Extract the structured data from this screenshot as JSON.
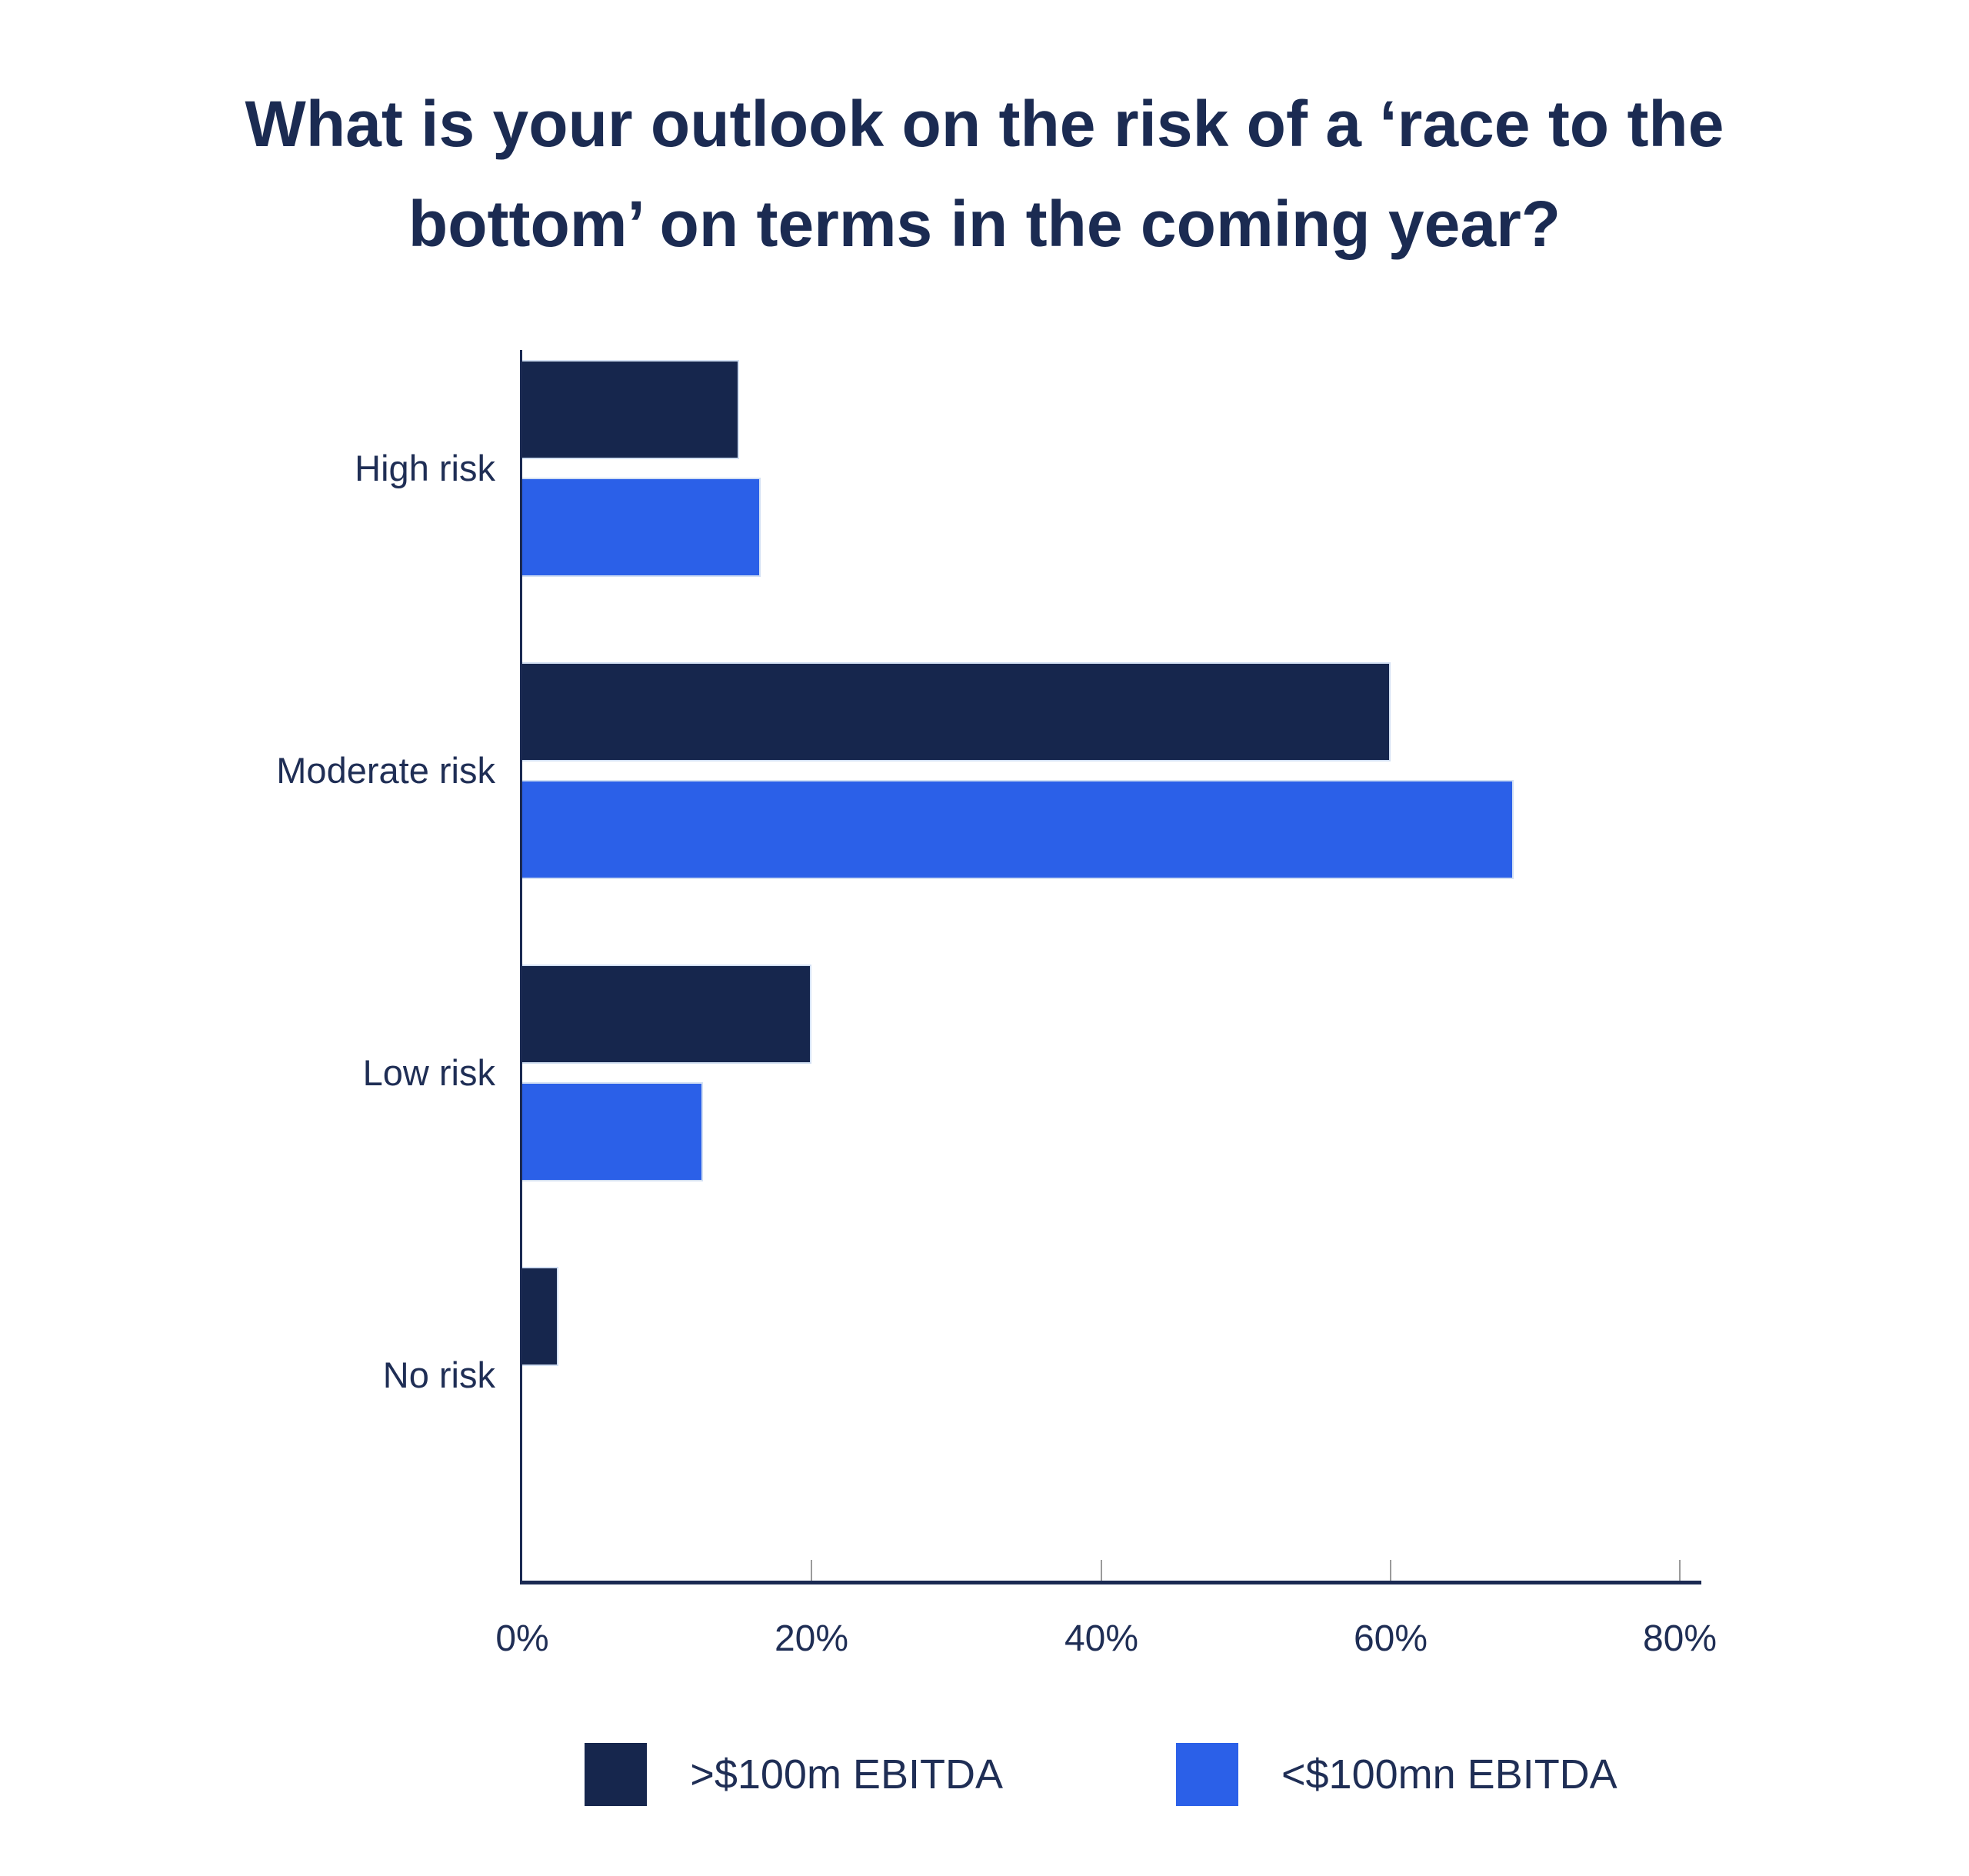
{
  "title": "What is your outlook on the risk of a ‘race to the bottom’ on terms in the coming year?",
  "title_lines": [
    "What is your outlook on the risk of a ‘race to the",
    "bottom’ on terms in the coming year?"
  ],
  "chart_data": {
    "type": "bar",
    "orientation": "horizontal",
    "title": "What is your outlook on the risk of a ‘race to the bottom’ on terms in the coming year?",
    "categories": [
      "High risk",
      "Moderate risk",
      "Low risk",
      "No risk"
    ],
    "series": [
      {
        "name": ">$100m EBITDA",
        "color": "#16264D",
        "values": [
          15,
          60,
          20,
          2.5
        ]
      },
      {
        "name": "<$100mn EBITDA",
        "color": "#2B60E8",
        "values": [
          16.5,
          68.5,
          12.5,
          0
        ]
      }
    ],
    "xlabel": "",
    "ylabel": "",
    "x_ticks": [
      "0%",
      "20%",
      "40%",
      "60%",
      "80%"
    ],
    "x_tick_values": [
      0,
      20,
      40,
      60,
      80
    ],
    "xlim": [
      0,
      80
    ],
    "grid": false,
    "legend_position": "bottom"
  },
  "legend": {
    "items": [
      {
        "label": ">$100m EBITDA",
        "color": "#16264D"
      },
      {
        "label": "<$100mn EBITDA",
        "color": "#2B60E8"
      }
    ]
  },
  "colors": {
    "background": "#FFFFFF",
    "title_text": "#1B2B52",
    "axis_text": "#1F2E55",
    "axis_line": "#1B2A52",
    "tick_mark": "#9B9B9B",
    "series_dark": "#16264D",
    "series_blue": "#2B60E8"
  }
}
